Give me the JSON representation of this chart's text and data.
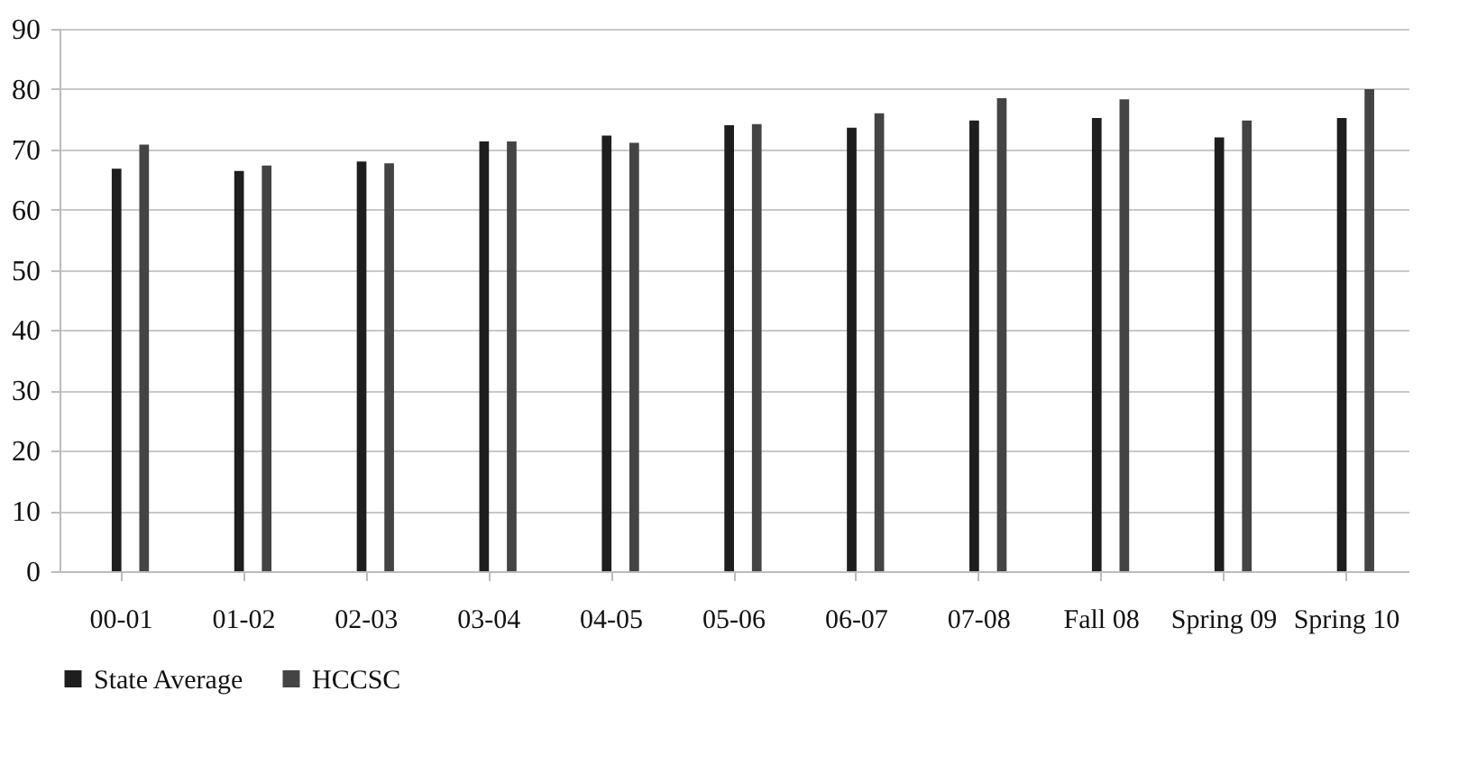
{
  "chart_data": {
    "type": "bar",
    "categories": [
      "00-01",
      "01-02",
      "02-03",
      "03-04",
      "04-05",
      "05-06",
      "06-07",
      "07-08",
      "Fall 08",
      "Spring 09",
      "Spring 10"
    ],
    "series": [
      {
        "name": "State Average",
        "color": "#1e1e1e",
        "values": [
          66.8,
          66.4,
          68,
          71.3,
          72.3,
          74,
          73.6,
          74.8,
          75.2,
          72,
          75.2
        ]
      },
      {
        "name": "HCCSC",
        "color": "#444444",
        "values": [
          70.8,
          67.3,
          67.7,
          71.3,
          71.1,
          74.2,
          76,
          78.5,
          78.3,
          74.8,
          80
        ]
      }
    ],
    "ylim": [
      0,
      90
    ],
    "yticks": [
      0,
      10,
      20,
      30,
      40,
      50,
      60,
      70,
      80,
      90
    ],
    "grid": "y",
    "legend": "bottom"
  }
}
